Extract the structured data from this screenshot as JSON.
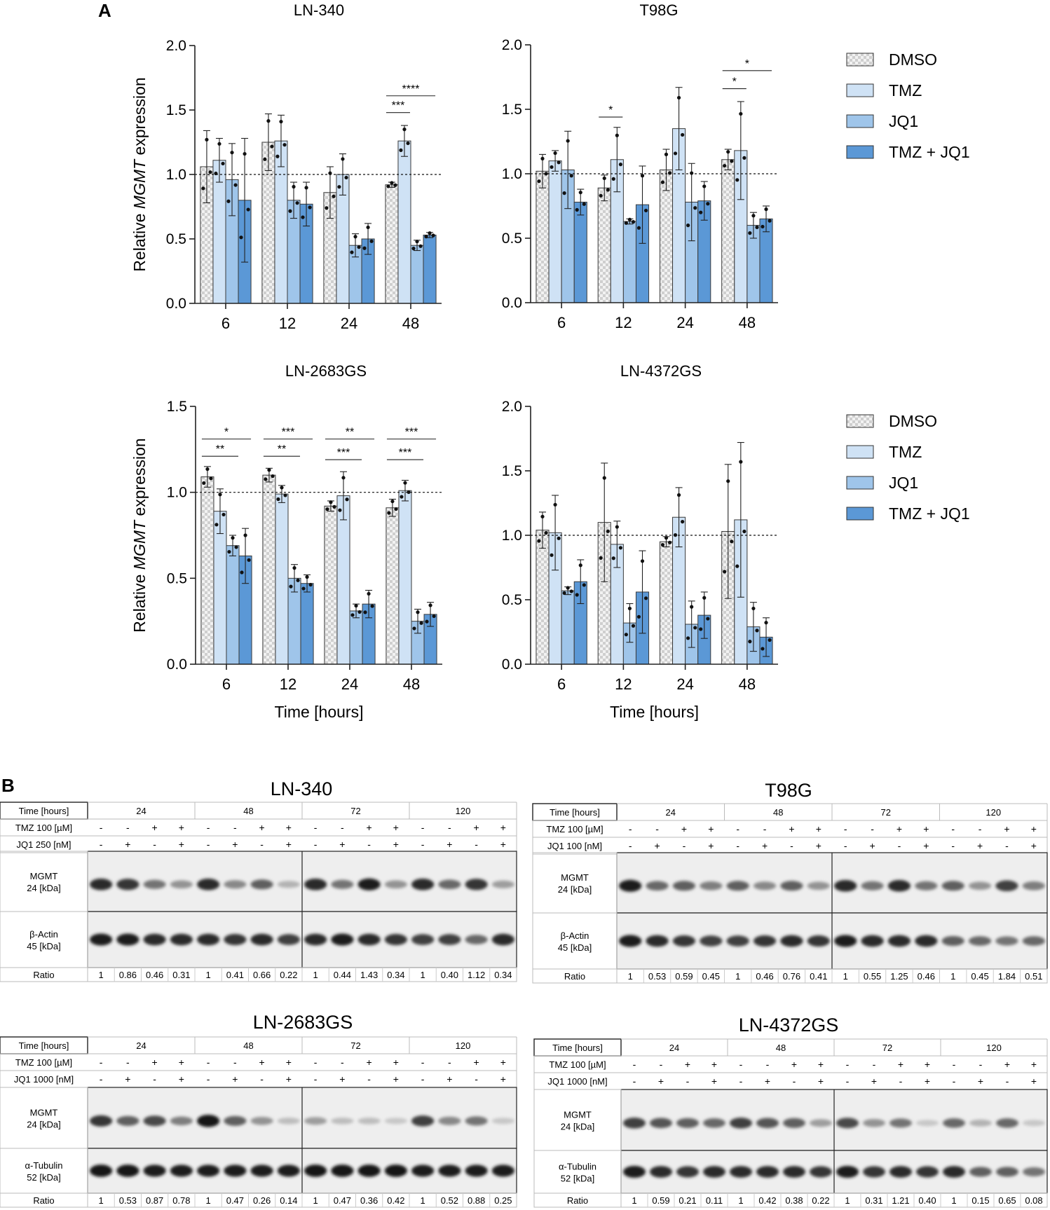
{
  "panel_labels": {
    "a": "A",
    "b": "B"
  },
  "colors": {
    "dmso": "#e4e4e4",
    "tmz": "#cfe2f5",
    "jq1": "#9fc5ea",
    "tmzjq1": "#5b98d6",
    "outline": "#333333"
  },
  "legend_top": [
    {
      "name": "DMSO",
      "color_key": "dmso",
      "pattern": true
    },
    {
      "name": "TMZ",
      "color_key": "tmz"
    },
    {
      "name": "JQ1",
      "color_key": "jq1"
    },
    {
      "name": "TMZ + JQ1",
      "color_key": "tmzjq1"
    }
  ],
  "legend_bottom": [
    {
      "name": "DMSO",
      "color_key": "dmso",
      "pattern": true
    },
    {
      "name": "TMZ",
      "color_key": "tmz"
    },
    {
      "name": "JQ1",
      "color_key": "jq1"
    },
    {
      "name": "TMZ + JQ1",
      "color_key": "tmzjq1"
    }
  ],
  "chart_data": [
    {
      "type": "bar",
      "title": "LN-340",
      "ylabel_prefix": "Relative ",
      "ylabel_italic": "MGMT",
      "ylabel_suffix": " expression",
      "xlabel": "",
      "categories": [
        "6",
        "12",
        "24",
        "48"
      ],
      "ylim": [
        0,
        2
      ],
      "yticks": [
        "0.0",
        "0.5",
        "1.0",
        "1.5",
        "2.0"
      ],
      "ytick_values": [
        0,
        0.5,
        1,
        1.5,
        2
      ],
      "reference_line": 1.0,
      "grid": false,
      "series": [
        {
          "name": "DMSO",
          "values": [
            1.06,
            1.25,
            0.86,
            0.92
          ],
          "errors": [
            0.28,
            0.22,
            0.2,
            0.02
          ]
        },
        {
          "name": "TMZ",
          "values": [
            1.11,
            1.26,
            1.0,
            1.26
          ],
          "errors": [
            0.17,
            0.2,
            0.16,
            0.12
          ]
        },
        {
          "name": "JQ1",
          "values": [
            0.96,
            0.8,
            0.45,
            0.45
          ],
          "errors": [
            0.28,
            0.14,
            0.09,
            0.04
          ]
        },
        {
          "name": "TMZ + JQ1",
          "values": [
            0.8,
            0.77,
            0.5,
            0.53
          ],
          "errors": [
            0.48,
            0.17,
            0.12,
            0.02
          ]
        }
      ],
      "significance": [
        {
          "label": "***",
          "group": 3,
          "from": 0,
          "to": 1,
          "y": 1.48
        },
        {
          "label": "****",
          "group": 3,
          "from": 0,
          "to": 3,
          "y": 1.61
        }
      ]
    },
    {
      "type": "bar",
      "title": "T98G",
      "ylabel_prefix": "",
      "ylabel_italic": "",
      "ylabel_suffix": "",
      "xlabel": "",
      "categories": [
        "6",
        "12",
        "24",
        "48"
      ],
      "ylim": [
        0,
        2
      ],
      "yticks": [
        "0.0",
        "0.5",
        "1.0",
        "1.5",
        "2.0"
      ],
      "ytick_values": [
        0,
        0.5,
        1,
        1.5,
        2
      ],
      "reference_line": 1.0,
      "grid": false,
      "series": [
        {
          "name": "DMSO",
          "values": [
            1.02,
            0.89,
            1.03,
            1.11
          ],
          "errors": [
            0.13,
            0.1,
            0.16,
            0.08
          ]
        },
        {
          "name": "TMZ",
          "values": [
            1.1,
            1.11,
            1.35,
            1.18
          ],
          "errors": [
            0.08,
            0.25,
            0.32,
            0.38
          ]
        },
        {
          "name": "JQ1",
          "values": [
            1.03,
            0.63,
            0.78,
            0.6
          ],
          "errors": [
            0.3,
            0.02,
            0.3,
            0.1
          ]
        },
        {
          "name": "TMZ + JQ1",
          "values": [
            0.78,
            0.76,
            0.79,
            0.65
          ],
          "errors": [
            0.1,
            0.3,
            0.15,
            0.1
          ]
        }
      ],
      "significance": [
        {
          "label": "*",
          "group": 1,
          "from": 0,
          "to": 1,
          "y": 1.44
        },
        {
          "label": "*",
          "group": 3,
          "from": 0,
          "to": 1,
          "y": 1.66
        },
        {
          "label": "*",
          "group": 3,
          "from": 0,
          "to": 3,
          "y": 1.8
        }
      ]
    },
    {
      "type": "bar",
      "title": "LN-2683GS",
      "ylabel_prefix": "Relative ",
      "ylabel_italic": "MGMT",
      "ylabel_suffix": " expression",
      "xlabel": "Time [hours]",
      "categories": [
        "6",
        "12",
        "24",
        "48"
      ],
      "ylim": [
        0,
        1.5
      ],
      "yticks": [
        "0.0",
        "0.5",
        "1.0",
        "1.5"
      ],
      "ytick_values": [
        0,
        0.5,
        1,
        1.5
      ],
      "reference_line": 1.0,
      "grid": false,
      "series": [
        {
          "name": "DMSO",
          "values": [
            1.09,
            1.1,
            0.92,
            0.91
          ],
          "errors": [
            0.06,
            0.04,
            0.03,
            0.05
          ]
        },
        {
          "name": "TMZ",
          "values": [
            0.89,
            0.99,
            0.98,
            1.01
          ],
          "errors": [
            0.13,
            0.05,
            0.14,
            0.06
          ]
        },
        {
          "name": "JQ1",
          "values": [
            0.69,
            0.5,
            0.31,
            0.25
          ],
          "errors": [
            0.06,
            0.08,
            0.04,
            0.07
          ]
        },
        {
          "name": "TMZ + JQ1",
          "values": [
            0.63,
            0.47,
            0.35,
            0.29
          ],
          "errors": [
            0.16,
            0.05,
            0.08,
            0.07
          ]
        }
      ],
      "significance": [
        {
          "label": "**",
          "group": 0,
          "from": 0,
          "to": 2,
          "y": 1.21
        },
        {
          "label": "*",
          "group": 0,
          "from": 0,
          "to": 3,
          "y": 1.31
        },
        {
          "label": "**",
          "group": 1,
          "from": 0,
          "to": 2,
          "y": 1.21
        },
        {
          "label": "***",
          "group": 1,
          "from": 0,
          "to": 3,
          "y": 1.31
        },
        {
          "label": "***",
          "group": 2,
          "from": 0,
          "to": 2,
          "y": 1.19
        },
        {
          "label": "**",
          "group": 2,
          "from": 0,
          "to": 3,
          "y": 1.31
        },
        {
          "label": "***",
          "group": 3,
          "from": 0,
          "to": 2,
          "y": 1.19
        },
        {
          "label": "***",
          "group": 3,
          "from": 0,
          "to": 3,
          "y": 1.31
        }
      ]
    },
    {
      "type": "bar",
      "title": "LN-4372GS",
      "ylabel_prefix": "",
      "ylabel_italic": "",
      "ylabel_suffix": "",
      "xlabel": "Time [hours]",
      "categories": [
        "6",
        "12",
        "24",
        "48"
      ],
      "ylim": [
        0,
        2
      ],
      "yticks": [
        "0.0",
        "0.5",
        "1.0",
        "1.5",
        "2.0"
      ],
      "ytick_values": [
        0,
        0.5,
        1,
        1.5,
        2
      ],
      "reference_line": 1.0,
      "grid": false,
      "series": [
        {
          "name": "DMSO",
          "values": [
            1.04,
            1.1,
            0.95,
            1.03
          ],
          "errors": [
            0.14,
            0.46,
            0.04,
            0.52
          ]
        },
        {
          "name": "TMZ",
          "values": [
            1.02,
            0.93,
            1.14,
            1.12
          ],
          "errors": [
            0.29,
            0.18,
            0.23,
            0.6
          ]
        },
        {
          "name": "JQ1",
          "values": [
            0.57,
            0.32,
            0.31,
            0.29
          ],
          "errors": [
            0.03,
            0.15,
            0.18,
            0.19
          ]
        },
        {
          "name": "TMZ + JQ1",
          "values": [
            0.64,
            0.56,
            0.38,
            0.21
          ],
          "errors": [
            0.17,
            0.32,
            0.18,
            0.15
          ]
        }
      ],
      "significance": []
    }
  ],
  "blots": [
    {
      "title": "LN-340",
      "time_label": "Time [hours]",
      "tmz_label": "TMZ 100 [µM]",
      "jq1_label": "JQ1 250 [nM]",
      "time_groups": [
        "24",
        "48",
        "72",
        "120"
      ],
      "tmz": [
        "-",
        "-",
        "+",
        "+",
        "-",
        "-",
        "+",
        "+",
        "-",
        "-",
        "+",
        "+",
        "-",
        "-",
        "+",
        "+"
      ],
      "jq1": [
        "-",
        "+",
        "-",
        "+",
        "-",
        "+",
        "-",
        "+",
        "-",
        "+",
        "-",
        "+",
        "-",
        "+",
        "-",
        "+"
      ],
      "band1_label": [
        "MGMT",
        "24 [kDa]"
      ],
      "band2_label": [
        "β-Actin",
        "45 [kDa]"
      ],
      "ratio_label": "Ratio",
      "ratios": [
        "1",
        "0.86",
        "0.46",
        "0.31",
        "1",
        "0.41",
        "0.66",
        "0.22",
        "1",
        "0.44",
        "1.43",
        "0.34",
        "1",
        "0.40",
        "1.12",
        "0.34"
      ],
      "band1_intensity": [
        0.85,
        0.8,
        0.5,
        0.35,
        0.85,
        0.4,
        0.6,
        0.2,
        0.85,
        0.5,
        0.9,
        0.35,
        0.85,
        0.55,
        0.8,
        0.3
      ],
      "band2_intensity": [
        0.9,
        0.9,
        0.85,
        0.85,
        0.85,
        0.8,
        0.85,
        0.75,
        0.85,
        0.9,
        0.85,
        0.8,
        0.75,
        0.75,
        0.55,
        0.85
      ]
    },
    {
      "title": "T98G",
      "time_label": "Time [hours]",
      "tmz_label": "TMZ 100 [µM]",
      "jq1_label": "JQ1 100 [nM]",
      "time_groups": [
        "24",
        "48",
        "72",
        "120"
      ],
      "tmz": [
        "-",
        "-",
        "+",
        "+",
        "-",
        "-",
        "+",
        "+",
        "-",
        "-",
        "+",
        "+",
        "-",
        "-",
        "+",
        "+"
      ],
      "jq1": [
        "-",
        "+",
        "-",
        "+",
        "-",
        "+",
        "-",
        "+",
        "-",
        "+",
        "-",
        "+",
        "-",
        "+",
        "-",
        "+"
      ],
      "band1_label": [
        "MGMT",
        "24 [kDa]"
      ],
      "band2_label": [
        "β-Actin",
        "45 [kDa]"
      ],
      "ratio_label": "Ratio",
      "ratios": [
        "1",
        "0.53",
        "0.59",
        "0.45",
        "1",
        "0.46",
        "0.76",
        "0.41",
        "1",
        "0.55",
        "1.25",
        "0.46",
        "1",
        "0.45",
        "1.84",
        "0.51"
      ],
      "band1_intensity": [
        0.9,
        0.55,
        0.6,
        0.45,
        0.6,
        0.4,
        0.6,
        0.35,
        0.85,
        0.5,
        0.85,
        0.5,
        0.6,
        0.35,
        0.75,
        0.45
      ],
      "band2_intensity": [
        0.9,
        0.85,
        0.8,
        0.75,
        0.75,
        0.8,
        0.85,
        0.8,
        0.9,
        0.85,
        0.85,
        0.85,
        0.6,
        0.55,
        0.5,
        0.55
      ]
    },
    {
      "title": "LN-2683GS",
      "time_label": "Time [hours]",
      "tmz_label": "TMZ 100 [µM]",
      "jq1_label": "JQ1 1000 [nM]",
      "time_groups": [
        "24",
        "48",
        "72",
        "120"
      ],
      "tmz": [
        "-",
        "-",
        "+",
        "+",
        "-",
        "-",
        "+",
        "+",
        "-",
        "-",
        "+",
        "+",
        "-",
        "-",
        "+",
        "+"
      ],
      "jq1": [
        "-",
        "+",
        "-",
        "+",
        "-",
        "+",
        "-",
        "+",
        "-",
        "+",
        "-",
        "+",
        "-",
        "+",
        "-",
        "+"
      ],
      "band1_label": [
        "MGMT",
        "24 [kDa]"
      ],
      "band2_label": [
        "α-Tubulin",
        "52 [kDa]"
      ],
      "ratio_label": "Ratio",
      "ratios": [
        "1",
        "0.53",
        "0.87",
        "0.78",
        "1",
        "0.47",
        "0.26",
        "0.14",
        "1",
        "0.47",
        "0.36",
        "0.42",
        "1",
        "0.52",
        "0.88",
        "0.25"
      ],
      "band1_intensity": [
        0.8,
        0.6,
        0.7,
        0.45,
        0.95,
        0.6,
        0.35,
        0.15,
        0.3,
        0.15,
        0.15,
        0.1,
        0.75,
        0.4,
        0.5,
        0.1
      ],
      "band2_intensity": [
        0.95,
        0.95,
        0.9,
        0.9,
        0.9,
        0.9,
        0.9,
        0.9,
        0.95,
        0.95,
        0.95,
        0.95,
        0.9,
        0.9,
        0.9,
        0.9
      ]
    },
    {
      "title": "LN-4372GS",
      "time_label": "Time [hours]",
      "tmz_label": "TMZ 100 [µM]",
      "jq1_label": "JQ1 1000 [nM]",
      "time_groups": [
        "24",
        "48",
        "72",
        "120"
      ],
      "tmz": [
        "-",
        "-",
        "+",
        "+",
        "-",
        "-",
        "+",
        "+",
        "-",
        "-",
        "+",
        "+",
        "-",
        "-",
        "+",
        "+"
      ],
      "jq1": [
        "-",
        "+",
        "-",
        "+",
        "-",
        "+",
        "-",
        "+",
        "-",
        "+",
        "-",
        "+",
        "-",
        "+",
        "-",
        "+"
      ],
      "band1_label": [
        "MGMT",
        "24 [kDa]"
      ],
      "band2_label": [
        "α-Tubulin",
        "52 [kDa]"
      ],
      "ratio_label": "Ratio",
      "ratios": [
        "1",
        "0.59",
        "0.21",
        "0.11",
        "1",
        "0.42",
        "0.38",
        "0.22",
        "1",
        "0.31",
        "1.21",
        "0.40",
        "1",
        "0.15",
        "0.65",
        "0.08"
      ],
      "band1_intensity": [
        0.75,
        0.65,
        0.6,
        0.55,
        0.75,
        0.65,
        0.6,
        0.3,
        0.7,
        0.35,
        0.5,
        0.1,
        0.55,
        0.2,
        0.55,
        0.1
      ],
      "band2_intensity": [
        0.9,
        0.85,
        0.8,
        0.85,
        0.85,
        0.85,
        0.85,
        0.8,
        0.9,
        0.8,
        0.85,
        0.8,
        0.85,
        0.6,
        0.6,
        0.5
      ]
    }
  ]
}
